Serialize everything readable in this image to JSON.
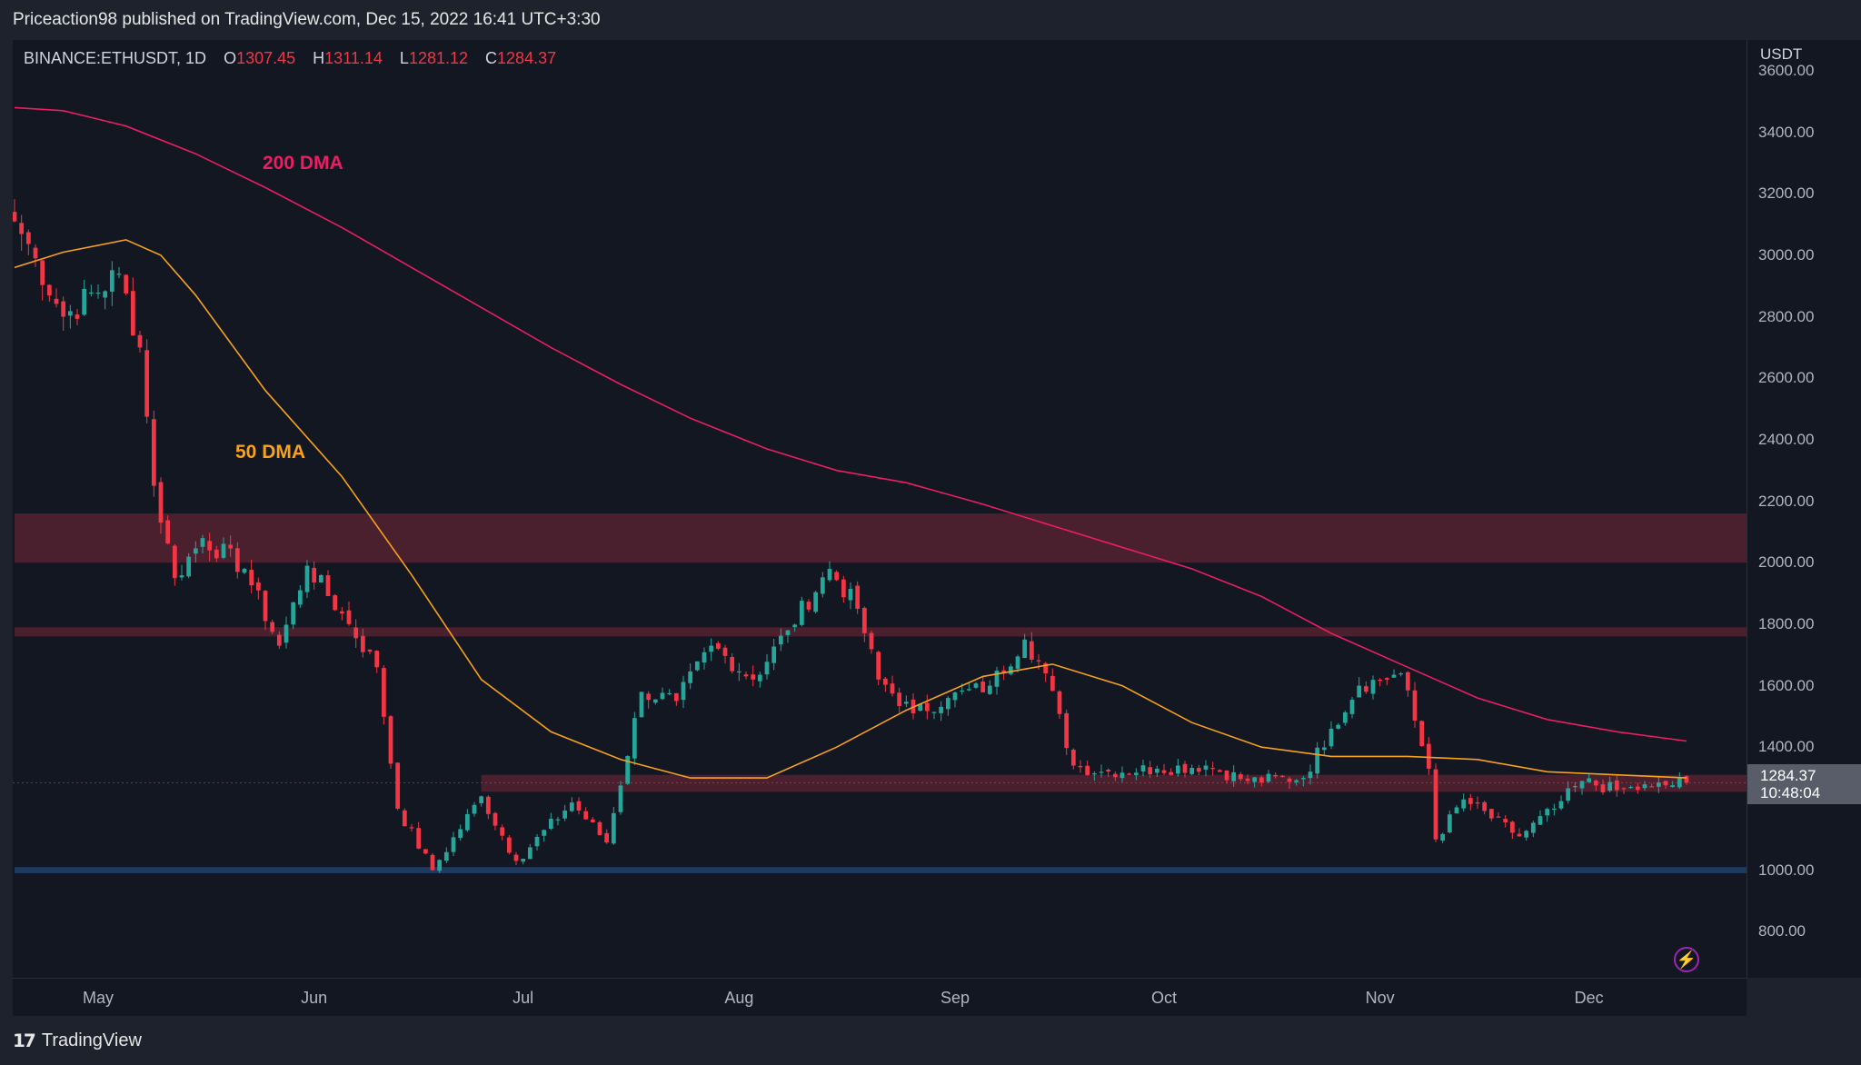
{
  "header": {
    "published": "Priceaction98 published on TradingView.com, Dec 15, 2022 16:41 UTC+3:30"
  },
  "legend": {
    "symbol": "BINANCE:ETHUSDT, 1D",
    "o_label": "O",
    "o_value": "1307.45",
    "h_label": "H",
    "h_value": "1311.14",
    "l_label": "L",
    "l_value": "1281.12",
    "c_label": "C",
    "c_value": "1284.37"
  },
  "annotations": {
    "dma200": "200 DMA",
    "dma50": "50 DMA"
  },
  "price_tag": {
    "price": "1284.37",
    "countdown": "10:48:04"
  },
  "footer": {
    "brand": "TradingView"
  },
  "colors": {
    "up": "#26a69a",
    "down": "#f23645",
    "dma200": "#e91e63",
    "dma50": "#f7a21b",
    "zone": "#5d2333",
    "support": "#1e3a5f"
  },
  "icons": {
    "flash": "lightning-icon",
    "logo": "tradingview-logo-icon"
  },
  "chart_data": {
    "type": "candlestick",
    "interval": "1D",
    "x_range": [
      "2022-04-19",
      "2022-12-15"
    ],
    "ylim": [
      650,
      3700
    ],
    "y_unit": "USDT",
    "y_ticks": [
      "3600.00",
      "3400.00",
      "3200.00",
      "3000.00",
      "2800.00",
      "2600.00",
      "2400.00",
      "2200.00",
      "2000.00",
      "1800.00",
      "1600.00",
      "1400.00",
      "1000.00",
      "800.00"
    ],
    "x_ticks": [
      {
        "label": "May",
        "date": "2022-05-01"
      },
      {
        "label": "Jun",
        "date": "2022-06-01"
      },
      {
        "label": "Jul",
        "date": "2022-07-01"
      },
      {
        "label": "Aug",
        "date": "2022-08-01"
      },
      {
        "label": "Sep",
        "date": "2022-09-01"
      },
      {
        "label": "Oct",
        "date": "2022-10-01"
      },
      {
        "label": "Nov",
        "date": "2022-11-01"
      },
      {
        "label": "Dec",
        "date": "2022-12-01"
      }
    ],
    "close_anchors": [
      {
        "date": "2022-04-19",
        "close": 3110
      },
      {
        "date": "2022-04-22",
        "close": 2990
      },
      {
        "date": "2022-04-26",
        "close": 2800
      },
      {
        "date": "2022-05-04",
        "close": 2940
      },
      {
        "date": "2022-05-07",
        "close": 2700
      },
      {
        "date": "2022-05-09",
        "close": 2250
      },
      {
        "date": "2022-05-12",
        "close": 1950
      },
      {
        "date": "2022-05-16",
        "close": 2080
      },
      {
        "date": "2022-05-22",
        "close": 1980
      },
      {
        "date": "2022-05-27",
        "close": 1730
      },
      {
        "date": "2022-05-31",
        "close": 1990
      },
      {
        "date": "2022-06-06",
        "close": 1800
      },
      {
        "date": "2022-06-10",
        "close": 1660
      },
      {
        "date": "2022-06-13",
        "close": 1200
      },
      {
        "date": "2022-06-18",
        "close": 1000
      },
      {
        "date": "2022-06-25",
        "close": 1240
      },
      {
        "date": "2022-06-30",
        "close": 1030
      },
      {
        "date": "2022-07-08",
        "close": 1220
      },
      {
        "date": "2022-07-13",
        "close": 1090
      },
      {
        "date": "2022-07-18",
        "close": 1580
      },
      {
        "date": "2022-07-23",
        "close": 1550
      },
      {
        "date": "2022-07-28",
        "close": 1730
      },
      {
        "date": "2022-08-03",
        "close": 1620
      },
      {
        "date": "2022-08-08",
        "close": 1780
      },
      {
        "date": "2022-08-14",
        "close": 1980
      },
      {
        "date": "2022-08-18",
        "close": 1850
      },
      {
        "date": "2022-08-21",
        "close": 1620
      },
      {
        "date": "2022-08-26",
        "close": 1510
      },
      {
        "date": "2022-08-31",
        "close": 1560
      },
      {
        "date": "2022-09-06",
        "close": 1600
      },
      {
        "date": "2022-09-11",
        "close": 1750
      },
      {
        "date": "2022-09-14",
        "close": 1640
      },
      {
        "date": "2022-09-18",
        "close": 1340
      },
      {
        "date": "2022-09-22",
        "close": 1320
      },
      {
        "date": "2022-09-30",
        "close": 1330
      },
      {
        "date": "2022-10-07",
        "close": 1340
      },
      {
        "date": "2022-10-13",
        "close": 1290
      },
      {
        "date": "2022-10-21",
        "close": 1300
      },
      {
        "date": "2022-10-25",
        "close": 1460
      },
      {
        "date": "2022-10-29",
        "close": 1600
      },
      {
        "date": "2022-11-04",
        "close": 1640
      },
      {
        "date": "2022-11-08",
        "close": 1330
      },
      {
        "date": "2022-11-09",
        "close": 1100
      },
      {
        "date": "2022-11-13",
        "close": 1230
      },
      {
        "date": "2022-11-21",
        "close": 1110
      },
      {
        "date": "2022-11-26",
        "close": 1200
      },
      {
        "date": "2022-11-30",
        "close": 1290
      },
      {
        "date": "2022-12-05",
        "close": 1260
      },
      {
        "date": "2022-12-10",
        "close": 1270
      },
      {
        "date": "2022-12-15",
        "close": 1284.37
      }
    ],
    "dma200": [
      {
        "date": "2022-04-19",
        "value": 3480
      },
      {
        "date": "2022-04-26",
        "value": 3470
      },
      {
        "date": "2022-05-05",
        "value": 3420
      },
      {
        "date": "2022-05-15",
        "value": 3330
      },
      {
        "date": "2022-05-25",
        "value": 3220
      },
      {
        "date": "2022-06-05",
        "value": 3090
      },
      {
        "date": "2022-06-15",
        "value": 2960
      },
      {
        "date": "2022-06-25",
        "value": 2830
      },
      {
        "date": "2022-07-05",
        "value": 2700
      },
      {
        "date": "2022-07-15",
        "value": 2580
      },
      {
        "date": "2022-07-25",
        "value": 2470
      },
      {
        "date": "2022-08-05",
        "value": 2370
      },
      {
        "date": "2022-08-15",
        "value": 2300
      },
      {
        "date": "2022-08-25",
        "value": 2260
      },
      {
        "date": "2022-09-05",
        "value": 2190
      },
      {
        "date": "2022-09-15",
        "value": 2120
      },
      {
        "date": "2022-09-25",
        "value": 2050
      },
      {
        "date": "2022-10-05",
        "value": 1980
      },
      {
        "date": "2022-10-15",
        "value": 1890
      },
      {
        "date": "2022-10-25",
        "value": 1770
      },
      {
        "date": "2022-11-05",
        "value": 1660
      },
      {
        "date": "2022-11-15",
        "value": 1560
      },
      {
        "date": "2022-11-25",
        "value": 1490
      },
      {
        "date": "2022-12-05",
        "value": 1450
      },
      {
        "date": "2022-12-15",
        "value": 1420
      }
    ],
    "dma50": [
      {
        "date": "2022-04-19",
        "value": 2960
      },
      {
        "date": "2022-04-26",
        "value": 3010
      },
      {
        "date": "2022-05-05",
        "value": 3050
      },
      {
        "date": "2022-05-10",
        "value": 3000
      },
      {
        "date": "2022-05-15",
        "value": 2870
      },
      {
        "date": "2022-05-25",
        "value": 2560
      },
      {
        "date": "2022-06-05",
        "value": 2280
      },
      {
        "date": "2022-06-15",
        "value": 1960
      },
      {
        "date": "2022-06-25",
        "value": 1620
      },
      {
        "date": "2022-07-05",
        "value": 1450
      },
      {
        "date": "2022-07-15",
        "value": 1360
      },
      {
        "date": "2022-07-25",
        "value": 1300
      },
      {
        "date": "2022-08-05",
        "value": 1300
      },
      {
        "date": "2022-08-15",
        "value": 1400
      },
      {
        "date": "2022-08-25",
        "value": 1520
      },
      {
        "date": "2022-09-05",
        "value": 1630
      },
      {
        "date": "2022-09-15",
        "value": 1670
      },
      {
        "date": "2022-09-25",
        "value": 1600
      },
      {
        "date": "2022-10-05",
        "value": 1480
      },
      {
        "date": "2022-10-15",
        "value": 1400
      },
      {
        "date": "2022-10-25",
        "value": 1370
      },
      {
        "date": "2022-11-05",
        "value": 1370
      },
      {
        "date": "2022-11-15",
        "value": 1360
      },
      {
        "date": "2022-11-25",
        "value": 1320
      },
      {
        "date": "2022-12-05",
        "value": 1310
      },
      {
        "date": "2022-12-15",
        "value": 1300
      }
    ],
    "zones": [
      {
        "name": "resistance-zone-2000-2150",
        "low": 2000,
        "high": 2160,
        "start": "2022-04-19",
        "end": "2022-12-15"
      },
      {
        "name": "resistance-line-1780",
        "low": 1760,
        "high": 1790,
        "start": "2022-04-19",
        "end": "2022-12-15"
      },
      {
        "name": "support-zone-1270",
        "low": 1255,
        "high": 1310,
        "start": "2022-06-25",
        "end": "2022-12-15"
      },
      {
        "name": "support-line-1000",
        "low": 990,
        "high": 1010,
        "start": "2022-04-19",
        "end": "2022-12-15"
      }
    ]
  }
}
